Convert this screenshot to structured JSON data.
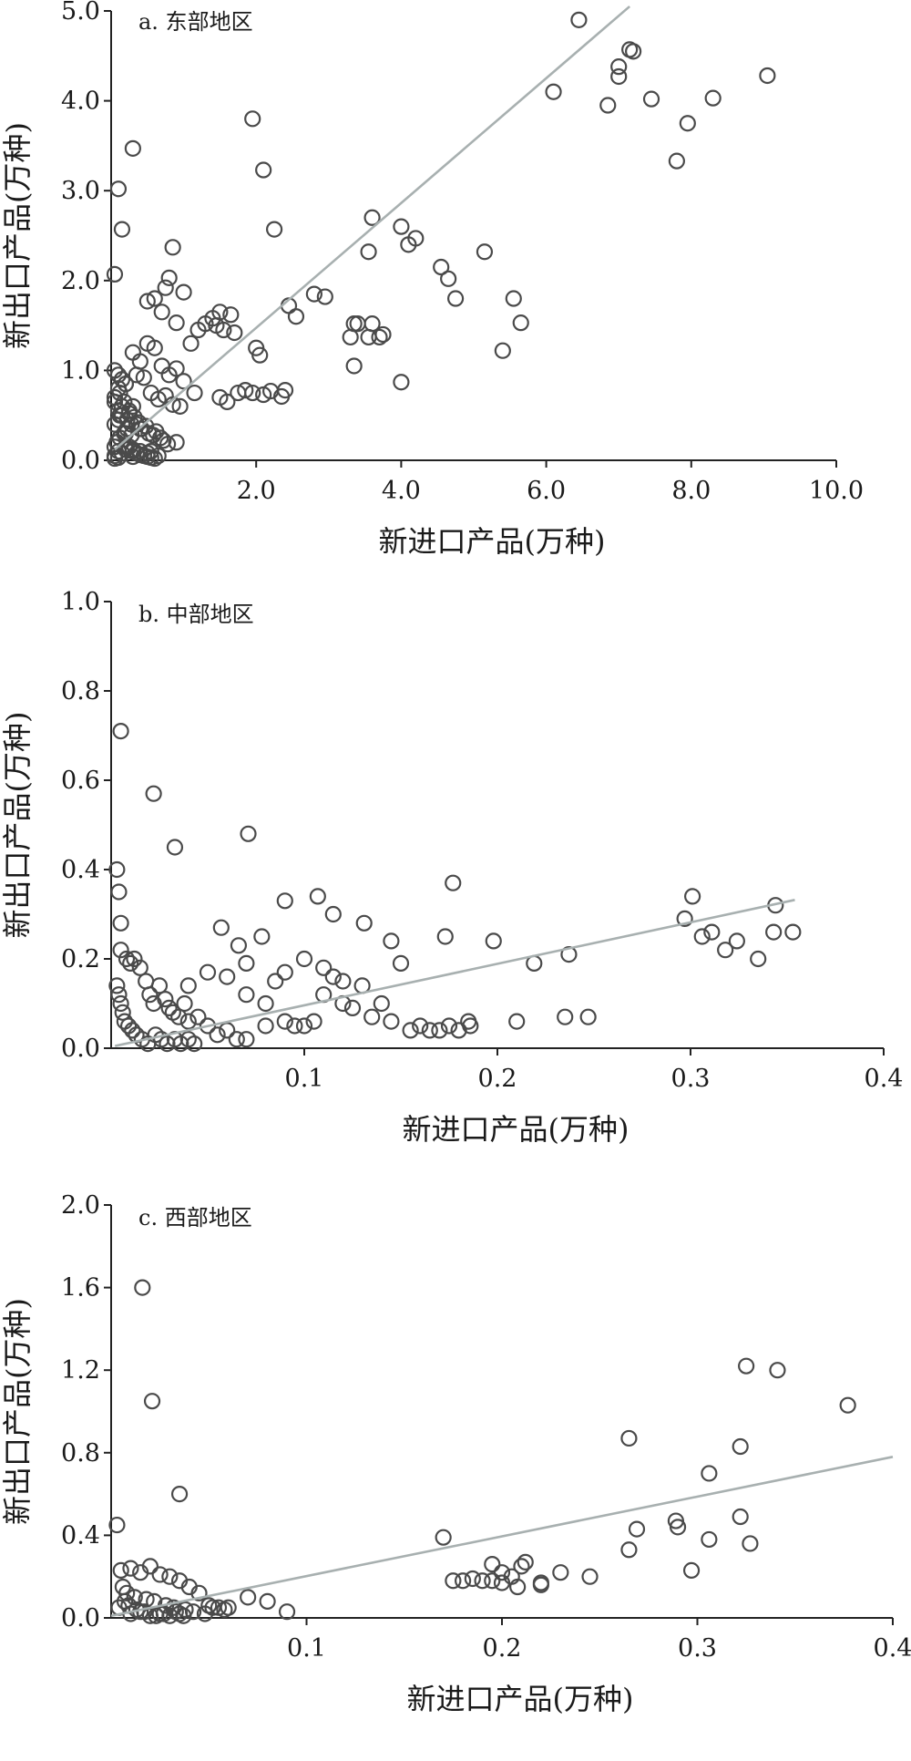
{
  "chart_data": [
    {
      "type": "scatter",
      "title": "a. 东部地区",
      "xlabel": "新进口产品(万种)",
      "ylabel": "新出口产品(万种)",
      "xlim": [
        0,
        10.0
      ],
      "ylim": [
        0,
        5.0
      ],
      "xticks": [
        "2.0",
        "4.0",
        "6.0",
        "8.0",
        "10.0"
      ],
      "yticks": [
        "0.0",
        "1.0",
        "2.0",
        "3.0",
        "4.0",
        "5.0"
      ],
      "grid": false,
      "trend_line": {
        "x": [
          0.05,
          7.15
        ],
        "y": [
          0.12,
          5.05
        ]
      },
      "points": {
        "x": [
          6.45,
          7.15,
          7.2,
          7.0,
          7.0,
          6.85,
          6.1,
          7.45,
          7.95,
          8.3,
          9.05,
          7.8,
          1.95,
          2.1,
          0.3,
          0.1,
          0.15,
          0.05,
          2.25,
          3.6,
          4.0,
          4.2,
          4.1,
          3.55,
          3.7,
          5.15,
          4.55,
          4.65,
          4.75,
          5.55,
          5.65,
          5.4,
          3.3,
          3.35,
          3.4,
          3.55,
          3.6,
          3.75,
          3.35,
          4.0,
          0.85,
          0.8,
          0.75,
          0.6,
          0.5,
          1.0,
          0.9,
          0.7,
          2.45,
          2.55,
          2.8,
          2.95,
          2.0,
          2.05,
          1.95,
          1.5,
          1.45,
          1.55,
          1.65,
          1.7,
          1.2,
          1.3,
          1.4,
          1.1,
          1.15,
          1.85,
          2.1,
          2.2,
          2.35,
          2.4,
          1.75,
          1.6,
          1.5,
          0.3,
          0.4,
          0.5,
          0.6,
          0.7,
          0.8,
          0.9,
          1.0,
          0.2,
          0.35,
          0.45,
          0.55,
          0.65,
          0.75,
          0.85,
          0.95,
          0.25,
          0.1,
          0.12,
          0.15,
          0.18,
          0.22,
          0.28,
          0.32,
          0.38,
          0.42,
          0.48,
          0.52,
          0.58,
          0.62,
          0.68,
          0.72,
          0.78,
          0.05,
          0.08,
          0.05,
          0.1,
          0.15,
          0.2,
          0.25,
          0.3,
          0.35,
          0.4,
          0.45,
          0.5,
          0.55,
          0.6,
          0.08,
          0.12,
          0.18,
          0.22,
          0.28,
          0.05,
          0.1,
          0.15,
          0.2,
          0.3,
          0.4,
          0.5,
          0.65,
          0.05,
          0.1,
          0.15,
          0.05,
          0.1,
          0.2,
          0.3,
          0.05,
          0.12,
          0.25,
          0.4,
          0.05,
          0.1,
          0.3,
          0.55,
          0.9,
          0.2,
          0.35
        ],
        "y": [
          4.9,
          4.57,
          4.55,
          4.38,
          4.27,
          3.95,
          4.1,
          4.02,
          3.75,
          4.03,
          4.28,
          3.33,
          3.8,
          3.23,
          3.47,
          3.02,
          2.57,
          2.07,
          2.57,
          2.7,
          2.6,
          2.47,
          2.4,
          2.32,
          1.37,
          2.32,
          2.15,
          2.02,
          1.8,
          1.8,
          1.53,
          1.22,
          1.37,
          1.52,
          1.52,
          1.37,
          1.52,
          1.4,
          1.05,
          0.87,
          2.37,
          2.03,
          1.92,
          1.8,
          1.77,
          1.87,
          1.53,
          1.65,
          1.72,
          1.6,
          1.85,
          1.82,
          1.25,
          1.17,
          0.75,
          1.65,
          1.5,
          1.45,
          1.62,
          1.42,
          1.45,
          1.52,
          1.58,
          1.3,
          0.75,
          0.78,
          0.73,
          0.77,
          0.71,
          0.78,
          0.75,
          0.65,
          0.7,
          1.2,
          1.1,
          1.3,
          1.25,
          1.05,
          0.95,
          1.02,
          0.88,
          0.85,
          0.95,
          0.92,
          0.75,
          0.68,
          0.72,
          0.62,
          0.6,
          0.52,
          0.55,
          0.5,
          0.6,
          0.65,
          0.45,
          0.4,
          0.48,
          0.42,
          0.35,
          0.38,
          0.3,
          0.28,
          0.32,
          0.25,
          0.22,
          0.18,
          0.15,
          0.2,
          0.05,
          0.1,
          0.08,
          0.12,
          0.15,
          0.1,
          0.08,
          0.06,
          0.05,
          0.04,
          0.03,
          0.02,
          0.2,
          0.25,
          0.3,
          0.35,
          0.28,
          0.4,
          0.45,
          0.5,
          0.15,
          0.12,
          0.1,
          0.08,
          0.05,
          0.7,
          0.8,
          0.9,
          1.0,
          0.95,
          0.85,
          0.6,
          0.65,
          0.75,
          0.55,
          0.35,
          0.02,
          0.03,
          0.04,
          0.1,
          0.2,
          0.3,
          0.4
        ]
      }
    },
    {
      "type": "scatter",
      "title": "b. 中部地区",
      "xlabel": "新进口产品(万种)",
      "ylabel": "新出口产品(万种)",
      "xlim": [
        0,
        0.4
      ],
      "ylim": [
        0,
        1.0
      ],
      "xticks": [
        "0.1",
        "0.2",
        "0.3",
        "0.4"
      ],
      "yticks": [
        "0.0",
        "0.2",
        "0.4",
        "0.6",
        "0.8",
        "1.0"
      ],
      "grid": false,
      "trend_line": {
        "x": [
          0.002,
          0.354
        ],
        "y": [
          0.005,
          0.332
        ]
      },
      "points": {
        "x": [
          0.005,
          0.022,
          0.033,
          0.071,
          0.003,
          0.004,
          0.005,
          0.09,
          0.107,
          0.115,
          0.131,
          0.145,
          0.173,
          0.177,
          0.198,
          0.219,
          0.237,
          0.301,
          0.297,
          0.344,
          0.311,
          0.324,
          0.306,
          0.318,
          0.335,
          0.343,
          0.353,
          0.078,
          0.057,
          0.066,
          0.04,
          0.05,
          0.06,
          0.07,
          0.08,
          0.09,
          0.1,
          0.11,
          0.12,
          0.13,
          0.14,
          0.15,
          0.16,
          0.17,
          0.18,
          0.186,
          0.21,
          0.235,
          0.247,
          0.07,
          0.08,
          0.085,
          0.09,
          0.095,
          0.1,
          0.105,
          0.11,
          0.115,
          0.12,
          0.125,
          0.135,
          0.145,
          0.155,
          0.165,
          0.175,
          0.185,
          0.005,
          0.008,
          0.01,
          0.012,
          0.015,
          0.018,
          0.02,
          0.022,
          0.025,
          0.028,
          0.03,
          0.032,
          0.035,
          0.038,
          0.04,
          0.045,
          0.05,
          0.055,
          0.06,
          0.065,
          0.07,
          0.003,
          0.004,
          0.005,
          0.006,
          0.007,
          0.009,
          0.011,
          0.013,
          0.016,
          0.019,
          0.023,
          0.026,
          0.029,
          0.033,
          0.036,
          0.04,
          0.043
        ],
        "y": [
          0.71,
          0.57,
          0.45,
          0.48,
          0.4,
          0.35,
          0.28,
          0.33,
          0.34,
          0.3,
          0.28,
          0.24,
          0.25,
          0.37,
          0.24,
          0.19,
          0.21,
          0.34,
          0.29,
          0.32,
          0.26,
          0.24,
          0.25,
          0.22,
          0.2,
          0.26,
          0.26,
          0.25,
          0.27,
          0.23,
          0.14,
          0.17,
          0.16,
          0.19,
          0.1,
          0.17,
          0.2,
          0.18,
          0.15,
          0.14,
          0.1,
          0.19,
          0.05,
          0.04,
          0.04,
          0.05,
          0.06,
          0.07,
          0.07,
          0.12,
          0.05,
          0.15,
          0.06,
          0.05,
          0.05,
          0.06,
          0.12,
          0.16,
          0.1,
          0.09,
          0.07,
          0.06,
          0.04,
          0.04,
          0.05,
          0.06,
          0.22,
          0.2,
          0.19,
          0.2,
          0.18,
          0.15,
          0.12,
          0.1,
          0.14,
          0.11,
          0.09,
          0.08,
          0.07,
          0.1,
          0.06,
          0.07,
          0.05,
          0.03,
          0.04,
          0.02,
          0.02,
          0.14,
          0.12,
          0.1,
          0.08,
          0.06,
          0.05,
          0.04,
          0.03,
          0.02,
          0.01,
          0.03,
          0.02,
          0.01,
          0.02,
          0.01,
          0.02,
          0.01
        ]
      }
    },
    {
      "type": "scatter",
      "title": "c. 西部地区",
      "xlabel": "新进口产品(万种)",
      "ylabel": "新出口产品(万种)",
      "xlim": [
        0,
        0.4
      ],
      "ylim": [
        0,
        2.0
      ],
      "xticks": [
        "0.1",
        "0.2",
        "0.3",
        "0.4"
      ],
      "yticks": [
        "0.0",
        "0.4",
        "0.8",
        "1.2",
        "1.6",
        "2.0"
      ],
      "grid": false,
      "trend_line": {
        "x": [
          0.0,
          0.4
        ],
        "y": [
          0.01,
          0.78
        ]
      },
      "points": {
        "x": [
          0.016,
          0.021,
          0.035,
          0.003,
          0.265,
          0.325,
          0.341,
          0.377,
          0.322,
          0.306,
          0.269,
          0.289,
          0.29,
          0.265,
          0.322,
          0.306,
          0.327,
          0.297,
          0.17,
          0.18,
          0.19,
          0.195,
          0.2,
          0.205,
          0.21,
          0.212,
          0.2,
          0.195,
          0.185,
          0.175,
          0.23,
          0.245,
          0.22,
          0.22,
          0.208,
          0.09,
          0.08,
          0.07,
          0.06,
          0.055,
          0.05,
          0.045,
          0.04,
          0.035,
          0.03,
          0.025,
          0.02,
          0.015,
          0.01,
          0.005,
          0.006,
          0.008,
          0.012,
          0.018,
          0.022,
          0.028,
          0.032,
          0.038,
          0.042,
          0.048,
          0.052,
          0.058,
          0.01,
          0.015,
          0.02,
          0.025,
          0.03,
          0.035,
          0.004,
          0.007,
          0.009,
          0.013,
          0.017,
          0.023,
          0.027,
          0.033,
          0.037
        ],
        "y": [
          1.6,
          1.05,
          0.6,
          0.45,
          0.87,
          1.22,
          1.2,
          1.03,
          0.83,
          0.7,
          0.43,
          0.47,
          0.44,
          0.33,
          0.49,
          0.38,
          0.36,
          0.23,
          0.39,
          0.18,
          0.18,
          0.26,
          0.22,
          0.2,
          0.25,
          0.27,
          0.17,
          0.18,
          0.19,
          0.18,
          0.22,
          0.2,
          0.16,
          0.17,
          0.15,
          0.03,
          0.08,
          0.1,
          0.05,
          0.05,
          0.06,
          0.12,
          0.15,
          0.18,
          0.2,
          0.21,
          0.25,
          0.22,
          0.24,
          0.23,
          0.15,
          0.12,
          0.1,
          0.09,
          0.08,
          0.06,
          0.05,
          0.04,
          0.03,
          0.02,
          0.05,
          0.04,
          0.02,
          0.03,
          0.01,
          0.02,
          0.01,
          0.02,
          0.05,
          0.08,
          0.06,
          0.04,
          0.03,
          0.01,
          0.02,
          0.03,
          0.01
        ]
      }
    }
  ]
}
